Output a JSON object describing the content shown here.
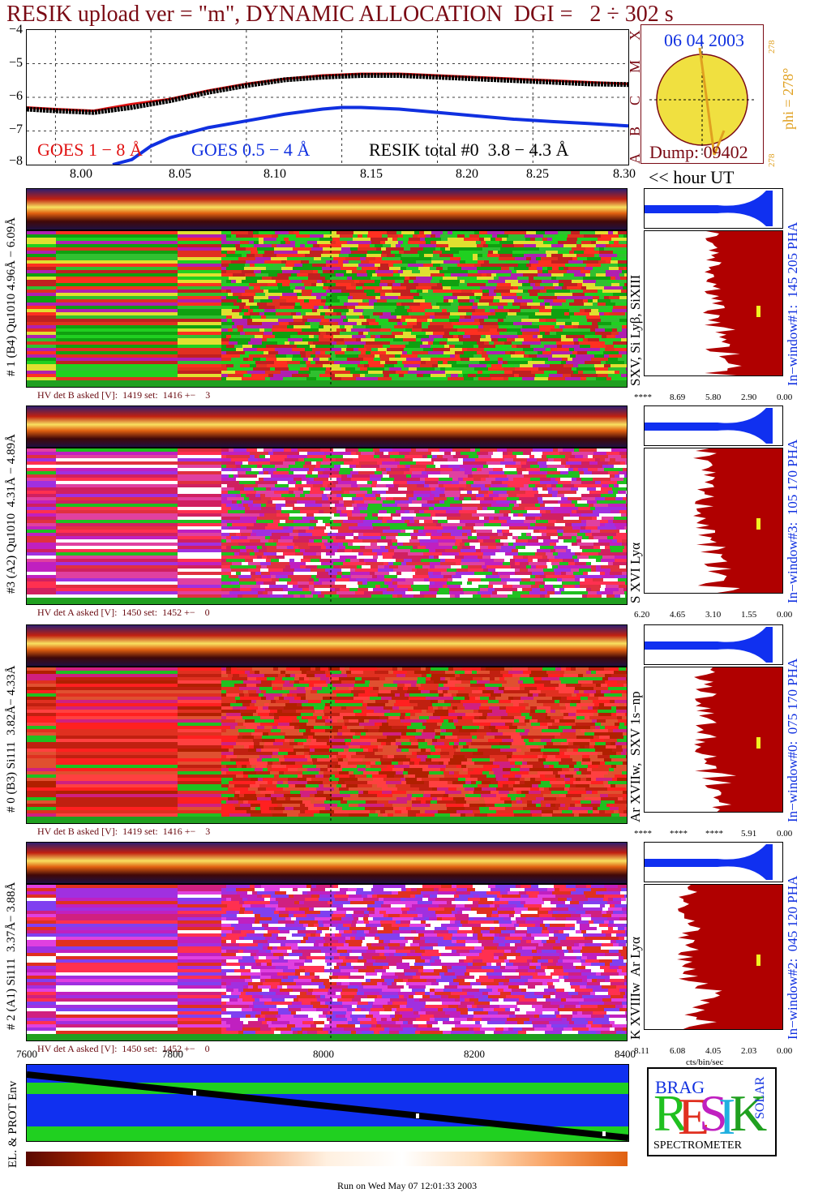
{
  "header": {
    "title": "RESIK upload ver = \"m\", DYNAMIC ALLOCATION  DGI =   2 ÷ 302 s"
  },
  "lightcurve": {
    "yticks": [
      "−4",
      "−5",
      "−6",
      "−7",
      "−8"
    ],
    "xticks": [
      "8.00",
      "8.05",
      "8.10",
      "8.15",
      "8.20",
      "8.25",
      "8.30"
    ],
    "x_unit_label": "<< hour UT",
    "goes_long_label": "GOES 1 − 8 Å",
    "goes_short_label": "GOES 0.5 − 4 Å",
    "resik_label": "RESIK total #0  3.8 − 4.3 Å",
    "colors": {
      "goes_long": "#e01010",
      "goes_short": "#1030e0",
      "resik": "#000000"
    }
  },
  "chart_data": {
    "type": "line",
    "title": "RESIK upload ver = \"m\", DYNAMIC ALLOCATION  DGI =   2 ÷ 302 s",
    "xlabel": "<< hour UT",
    "ylabel": "",
    "xlim": [
      7.985,
      8.3
    ],
    "ylim": [
      -8,
      -4
    ],
    "series": [
      {
        "name": "GOES 1 − 8 Å",
        "x": [
          7.985,
          8.0,
          8.02,
          8.04,
          8.06,
          8.08,
          8.1,
          8.12,
          8.14,
          8.16,
          8.18,
          8.2,
          8.22,
          8.24,
          8.26,
          8.28,
          8.3
        ],
        "values": [
          -6.3,
          -6.35,
          -6.4,
          -6.2,
          -6.05,
          -5.8,
          -5.6,
          -5.45,
          -5.35,
          -5.3,
          -5.3,
          -5.35,
          -5.4,
          -5.45,
          -5.5,
          -5.55,
          -5.6
        ]
      },
      {
        "name": "GOES 0.5 − 4 Å",
        "x": [
          8.03,
          8.04,
          8.05,
          8.06,
          8.08,
          8.1,
          8.12,
          8.14,
          8.15,
          8.16,
          8.18,
          8.2,
          8.22,
          8.24,
          8.26,
          8.28,
          8.3
        ],
        "values": [
          -8.0,
          -7.85,
          -7.45,
          -7.2,
          -6.9,
          -6.7,
          -6.5,
          -6.35,
          -6.3,
          -6.3,
          -6.35,
          -6.45,
          -6.55,
          -6.65,
          -6.72,
          -6.78,
          -6.85
        ]
      },
      {
        "name": "RESIK total #0  3.8 − 4.3 Å",
        "x": [
          7.985,
          8.0,
          8.02,
          8.04,
          8.06,
          8.08,
          8.1,
          8.12,
          8.14,
          8.16,
          8.18,
          8.2,
          8.22,
          8.24,
          8.26,
          8.28,
          8.3
        ],
        "values": [
          -6.35,
          -6.4,
          -6.45,
          -6.3,
          -6.1,
          -5.85,
          -5.65,
          -5.48,
          -5.4,
          -5.35,
          -5.35,
          -5.4,
          -5.45,
          -5.5,
          -5.55,
          -5.6,
          -5.62
        ]
      }
    ],
    "grid": true
  },
  "sun": {
    "date": "06 04 2003",
    "phi_label": "phi = 278°",
    "phi_small_top": "278",
    "phi_small_bottom": "278",
    "dump": "Dump: 09402",
    "side_letters": [
      "X",
      "M",
      "C",
      "B",
      "A"
    ]
  },
  "detectors": [
    {
      "ylabel": "# 1 (B4) Qu1010 4.96Å − 6.09Å",
      "line_label": "SXV, Si Lyβ, SiXIII",
      "window_label": "In−window#1:  145 205 PHA",
      "hv": "HV det B asked [V]:  1419 set:  1416 +−    3",
      "hist_ticks": [
        "****",
        "8.69",
        "5.80",
        "2.90",
        "0.00"
      ]
    },
    {
      "ylabel": "#3 (A2) Qu1010  4.31Å − 4.89Å",
      "line_label": "S XVI Lyα",
      "window_label": "In−window#3:  105 170 PHA",
      "hv": "HV det A asked [V]:  1450 set:  1452 +−    0",
      "hist_ticks": [
        "6.20",
        "4.65",
        "3.10",
        "1.55",
        "0.00"
      ]
    },
    {
      "ylabel": "# 0 (B3) Si111  3.82Å− 4.33Å",
      "line_label": "Ar XVIIw,  SXV 1s−np",
      "window_label": "In−window#0:  075 170 PHA",
      "hv": "HV det B asked [V]:  1419 set:  1416 +−    3",
      "hist_ticks": [
        "****",
        "****",
        "****",
        "5.91",
        "0.00"
      ]
    },
    {
      "ylabel": "# 2 (A1) Si111  3.37Å− 3.88Å",
      "line_label": "K XVIIIw  Ar Lyα",
      "window_label": "In−window#2:  045 120 PHA",
      "hv": "HV det A asked [V]:  1450 set:  1452 +−    0",
      "hist_ticks": [
        "8.11",
        "6.08",
        "4.05",
        "2.03",
        "0.00"
      ],
      "hist_unit": "cts/bin/sec"
    }
  ],
  "env": {
    "ylabel": "EL. & PROT Env",
    "xticks": [
      "7600",
      "7800",
      "8000",
      "8200",
      "8400"
    ]
  },
  "logo": {
    "letters_top": "BRAG",
    "letters_main": "RESIK",
    "letters_side": "SOLAR",
    "word": "SPECTROMETER"
  },
  "footer": {
    "run": "Run on Wed May 07 12:01:33 2003"
  }
}
